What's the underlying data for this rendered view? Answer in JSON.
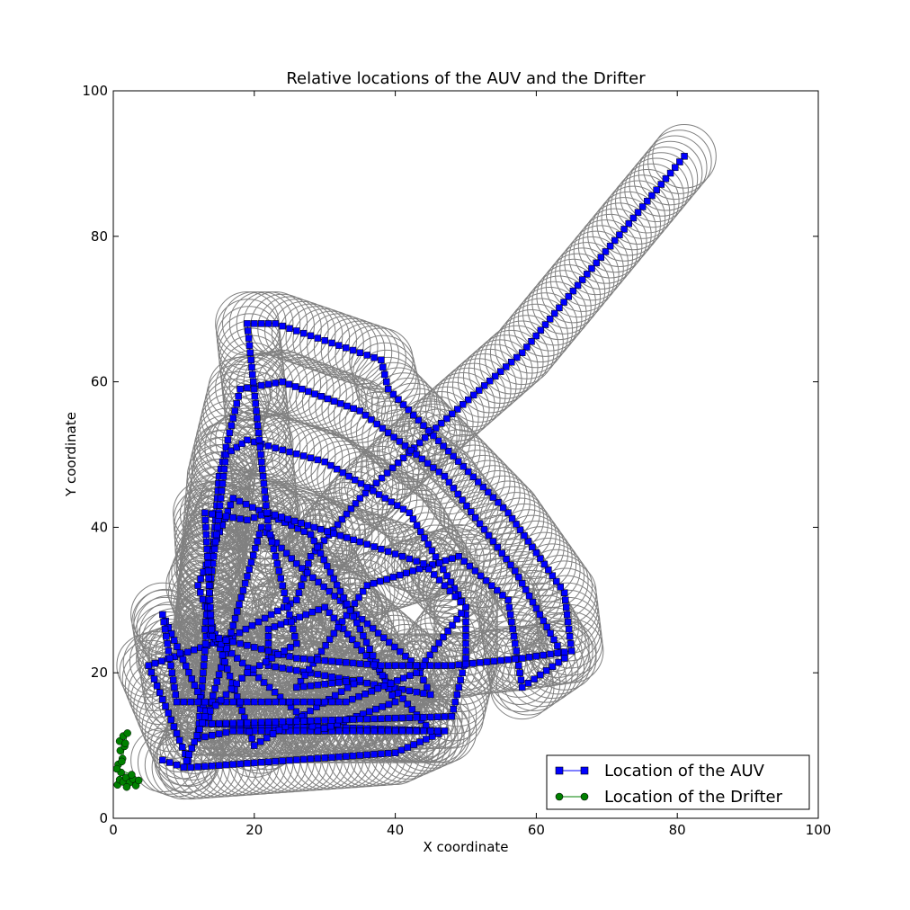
{
  "chart_data": {
    "type": "scatter",
    "title": "Relative locations of the AUV and the Drifter",
    "xlabel": "X coordinate",
    "ylabel": "Y coordinate",
    "xlim": [
      0,
      100
    ],
    "ylim": [
      0,
      100
    ],
    "xticks": [
      "0",
      "20",
      "40",
      "60",
      "80",
      "100"
    ],
    "yticks": [
      "0",
      "20",
      "40",
      "60",
      "80",
      "100"
    ],
    "grid": false,
    "legend": {
      "position": "bottom-right",
      "entries": [
        "Location of the AUV",
        "Location of the Drifter"
      ]
    },
    "colors": {
      "auv": "#0000ff",
      "drifter": "#008000",
      "range_circles": "#808080"
    },
    "auv_range_radius": 4.5,
    "series": [
      {
        "name": "Location of the AUV",
        "marker": "square",
        "waypoints": [
          [
            81,
            91
          ],
          [
            58,
            64
          ],
          [
            45,
            53
          ],
          [
            35,
            44
          ],
          [
            28,
            36
          ],
          [
            26,
            30
          ],
          [
            17,
            25
          ],
          [
            5,
            21
          ],
          [
            11,
            7
          ],
          [
            40,
            9
          ],
          [
            47,
            12
          ],
          [
            13,
            13
          ],
          [
            21,
            40
          ],
          [
            26,
            35
          ],
          [
            43,
            21
          ],
          [
            45,
            17
          ],
          [
            22,
            21
          ],
          [
            22,
            26
          ],
          [
            30,
            29
          ],
          [
            45,
            12
          ],
          [
            17,
            12
          ],
          [
            12,
            11
          ],
          [
            15,
            47
          ],
          [
            18,
            59
          ],
          [
            24,
            60
          ],
          [
            35,
            56
          ],
          [
            47,
            47
          ],
          [
            57,
            34
          ],
          [
            64,
            22
          ],
          [
            58,
            18
          ],
          [
            56,
            30
          ],
          [
            49,
            36
          ],
          [
            36,
            32
          ],
          [
            26,
            18
          ],
          [
            35,
            19
          ],
          [
            20,
            10
          ],
          [
            12,
            32
          ],
          [
            17,
            44
          ],
          [
            28,
            39
          ],
          [
            35,
            26
          ],
          [
            40,
            16
          ],
          [
            29,
            12
          ],
          [
            13,
            26
          ],
          [
            16,
            50
          ],
          [
            19,
            52
          ],
          [
            30,
            49
          ],
          [
            42,
            42
          ],
          [
            50,
            29
          ],
          [
            50,
            22
          ],
          [
            48,
            14
          ],
          [
            14,
            13
          ],
          [
            7,
            28
          ],
          [
            9,
            16
          ],
          [
            33,
            16
          ],
          [
            43,
            20
          ],
          [
            50,
            29
          ],
          [
            44,
            35
          ],
          [
            35,
            38
          ],
          [
            22,
            42
          ],
          [
            19,
            41
          ],
          [
            13,
            42
          ],
          [
            14,
            25
          ],
          [
            26,
            22
          ],
          [
            38,
            21
          ],
          [
            48,
            21
          ],
          [
            58,
            22
          ],
          [
            65,
            23
          ],
          [
            64,
            31
          ],
          [
            56,
            42
          ],
          [
            44,
            54
          ],
          [
            39,
            59
          ],
          [
            38,
            63
          ],
          [
            29,
            66
          ],
          [
            23,
            68
          ],
          [
            19,
            68
          ],
          [
            22,
            40
          ],
          [
            26,
            24
          ],
          [
            19,
            20
          ],
          [
            13,
            14
          ],
          [
            10,
            7
          ],
          [
            7,
            8
          ]
        ]
      },
      {
        "name": "Location of the Drifter",
        "marker": "circle",
        "points": [
          [
            0.6,
            4.6
          ],
          [
            0.9,
            5.3
          ],
          [
            1.4,
            5.0
          ],
          [
            1.8,
            5.6
          ],
          [
            2.3,
            4.9
          ],
          [
            2.8,
            5.4
          ],
          [
            3.2,
            4.5
          ],
          [
            3.6,
            5.2
          ],
          [
            1.1,
            6.3
          ],
          [
            0.7,
            7.4
          ],
          [
            1.3,
            8.2
          ],
          [
            1.0,
            9.3
          ],
          [
            1.6,
            9.9
          ],
          [
            0.9,
            10.6
          ],
          [
            1.4,
            11.3
          ],
          [
            2.0,
            11.7
          ],
          [
            1.7,
            10.3
          ],
          [
            1.2,
            7.8
          ],
          [
            0.5,
            6.8
          ],
          [
            2.6,
            6.0
          ],
          [
            1.9,
            4.3
          ]
        ]
      }
    ]
  }
}
